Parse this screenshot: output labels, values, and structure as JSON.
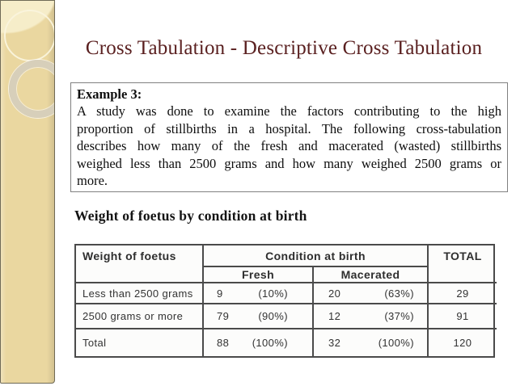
{
  "title": "Cross Tabulation - Descriptive Cross Tabulation",
  "example": {
    "heading": "Example 3:",
    "lines": [
      "A study was done to examine the factors contributing to the high",
      "proportion of stillbirths in a hospital. The following cross-tabulation",
      "describes how many of the fresh and macerated (wasted) stillbirths",
      "weighed less than 2500 grams and how many weighed 2500 grams or",
      "more."
    ]
  },
  "table": {
    "caption": "Weight of foetus by condition at birth",
    "header": {
      "row_dim": "Weight of foetus",
      "col_group": "Condition at birth",
      "col_fresh": "Fresh",
      "col_macerated": "Macerated",
      "total": "TOTAL"
    },
    "rows": [
      {
        "label": "Less than 2500 grams",
        "fresh_n": "9",
        "fresh_pct": "(10%)",
        "mac_n": "20",
        "mac_pct": "(63%)",
        "total": "29"
      },
      {
        "label": "2500 grams or more",
        "fresh_n": "79",
        "fresh_pct": "(90%)",
        "mac_n": "12",
        "mac_pct": "(37%)",
        "total": "91"
      },
      {
        "label": "Total",
        "fresh_n": "88",
        "fresh_pct": "(100%)",
        "mac_n": "32",
        "mac_pct": "(100%)",
        "total": "120"
      }
    ]
  },
  "colors": {
    "title_text": "#5a2020",
    "strip_beige": "#ead7a0",
    "strip_highlight": "#f6edc9",
    "table_border": "#4a4a4a"
  }
}
